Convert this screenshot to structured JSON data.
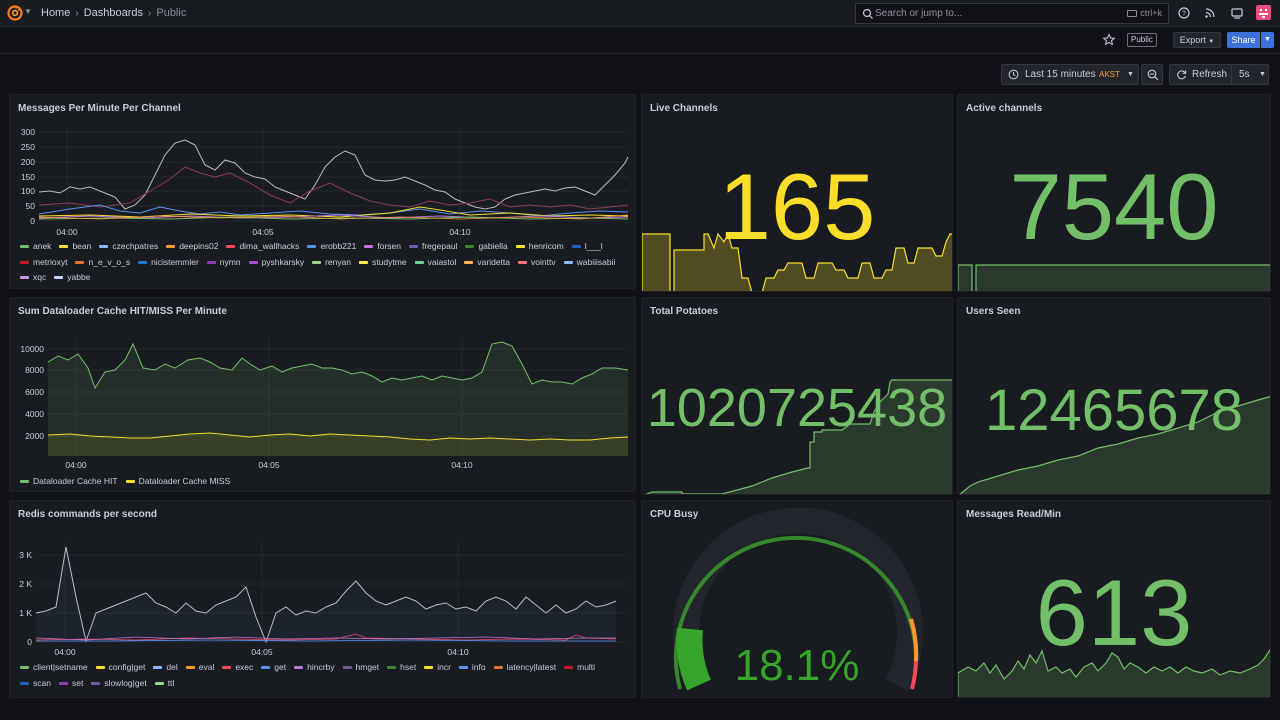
{
  "breadcrumb": {
    "home": "Home",
    "dashboards": "Dashboards",
    "current": "Public"
  },
  "search": {
    "placeholder": "Search or jump to...",
    "shortcut": "ctrl+k"
  },
  "toolbar": {
    "public_badge": "Public",
    "export": "Export",
    "share": "Share"
  },
  "time": {
    "range": "Last 15 minutes",
    "tz": "AKST",
    "refresh_label": "Refresh",
    "interval": "5s"
  },
  "colors": {
    "green": "#73bf69",
    "yellow": "#fade2a",
    "orange": "#ff9830",
    "red": "#f2495c",
    "blue": "#5794f2",
    "accent": "#3d71d9"
  },
  "panels": {
    "messages_per_minute": {
      "title": "Messages Per Minute Per Channel",
      "y_ticks": [
        "300",
        "250",
        "200",
        "150",
        "100",
        "50",
        "0"
      ],
      "x_ticks": [
        "04:00",
        "04:05",
        "04:10"
      ],
      "legend": [
        {
          "name": "anek",
          "color": "#73bf69"
        },
        {
          "name": "bean",
          "color": "#fade2a"
        },
        {
          "name": "czechpatres",
          "color": "#8ab8ff"
        },
        {
          "name": "deepins02",
          "color": "#ff9830"
        },
        {
          "name": "dima_wallhacks",
          "color": "#f2495c"
        },
        {
          "name": "erobb221",
          "color": "#5794f2"
        },
        {
          "name": "forsen",
          "color": "#b877d9"
        },
        {
          "name": "fregepaul",
          "color": "#705da0"
        },
        {
          "name": "gabiella",
          "color": "#37872d"
        },
        {
          "name": "henricom",
          "color": "#fade2a"
        },
        {
          "name": "l___l",
          "color": "#1f60c4"
        },
        {
          "name": "metrioxyt",
          "color": "#c4162a"
        },
        {
          "name": "n_e_v_o_s",
          "color": "#e0752d"
        },
        {
          "name": "nicistemmler",
          "color": "#1f78c1"
        },
        {
          "name": "nymn",
          "color": "#8f3bb8"
        },
        {
          "name": "pyshkarsky",
          "color": "#a352cc"
        },
        {
          "name": "renyan",
          "color": "#96d98d"
        },
        {
          "name": "studytme",
          "color": "#ffee52"
        },
        {
          "name": "vaiastol",
          "color": "#6ccf8e"
        },
        {
          "name": "varidetta",
          "color": "#ffb357"
        },
        {
          "name": "vointtv",
          "color": "#ff7383"
        },
        {
          "name": "wabiiisabii",
          "color": "#8ab8ff"
        },
        {
          "name": "xqc",
          "color": "#ca95e5"
        },
        {
          "name": "yabbe",
          "color": "#c0d8ff"
        }
      ]
    },
    "cache": {
      "title": "Sum Dataloader Cache HIT/MISS Per Minute",
      "y_ticks": [
        "10000",
        "8000",
        "6000",
        "4000",
        "2000"
      ],
      "x_ticks": [
        "04:00",
        "04:05",
        "04:10"
      ],
      "legend": [
        {
          "name": "Dataloader Cache HIT",
          "color": "#73bf69"
        },
        {
          "name": "Dataloader Cache MISS",
          "color": "#fade2a"
        }
      ]
    },
    "redis": {
      "title": "Redis commands per second",
      "y_ticks": [
        "3 K",
        "2 K",
        "1 K",
        "0"
      ],
      "x_ticks": [
        "04:00",
        "04:05",
        "04:10"
      ],
      "legend": [
        {
          "name": "client|setname",
          "color": "#73bf69"
        },
        {
          "name": "config|get",
          "color": "#fade2a"
        },
        {
          "name": "del",
          "color": "#8ab8ff"
        },
        {
          "name": "eval",
          "color": "#ff9830"
        },
        {
          "name": "exec",
          "color": "#f2495c"
        },
        {
          "name": "get",
          "color": "#5794f2"
        },
        {
          "name": "hincrby",
          "color": "#b877d9"
        },
        {
          "name": "hmget",
          "color": "#705da0"
        },
        {
          "name": "hset",
          "color": "#37872d"
        },
        {
          "name": "incr",
          "color": "#fade2a"
        },
        {
          "name": "info",
          "color": "#5794f2"
        },
        {
          "name": "latency|latest",
          "color": "#e0752d"
        },
        {
          "name": "multi",
          "color": "#c4162a"
        },
        {
          "name": "scan",
          "color": "#1f60c4"
        },
        {
          "name": "set",
          "color": "#8f3bb8"
        },
        {
          "name": "slowlog|get",
          "color": "#705da0"
        },
        {
          "name": "ttl",
          "color": "#96d98d"
        }
      ]
    },
    "live_channels": {
      "title": "Live Channels",
      "value": "165",
      "color": "#fade2a"
    },
    "active_channels": {
      "title": "Active channels",
      "value": "7540",
      "color": "#73bf69"
    },
    "total_potatoes": {
      "title": "Total Potatoes",
      "value": "1020725438",
      "color": "#73bf69"
    },
    "users_seen": {
      "title": "Users Seen",
      "value": "12465678",
      "color": "#73bf69"
    },
    "cpu_busy": {
      "title": "CPU Busy",
      "value": "18.1%",
      "percent": 18.1,
      "color": "#73bf69"
    },
    "messages_read": {
      "title": "Messages Read/Min",
      "value": "613",
      "color": "#73bf69"
    }
  }
}
